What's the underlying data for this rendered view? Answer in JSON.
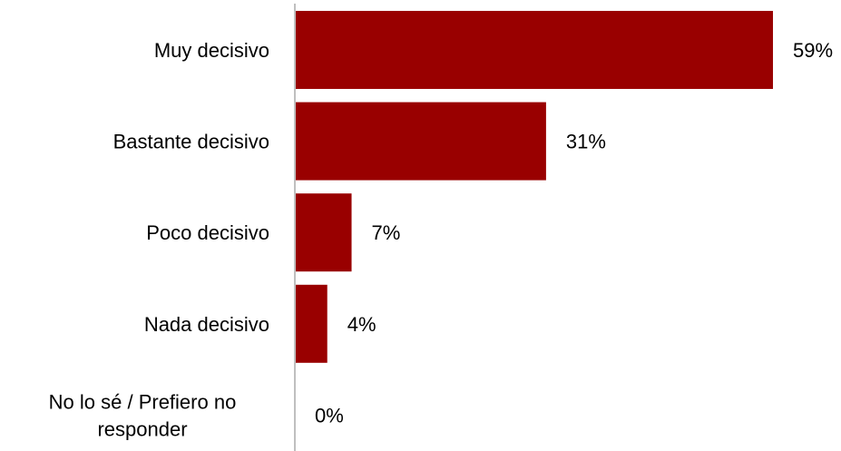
{
  "colors": {
    "bar": "#990000",
    "axis": "#bfbfbf",
    "text": "#000000"
  },
  "chart_data": {
    "type": "bar",
    "orientation": "horizontal",
    "categories": [
      "Muy decisivo",
      "Bastante decisivo",
      "Poco decisivo",
      "Nada decisivo",
      "No lo sé / Prefiero no responder"
    ],
    "values": [
      59,
      31,
      7,
      4,
      0
    ],
    "value_labels": [
      "59%",
      "31%",
      "7%",
      "4%",
      "0%"
    ],
    "title": "",
    "xlabel": "",
    "ylabel": "",
    "xlim": [
      0,
      59
    ],
    "grid": false,
    "legend": "none"
  }
}
